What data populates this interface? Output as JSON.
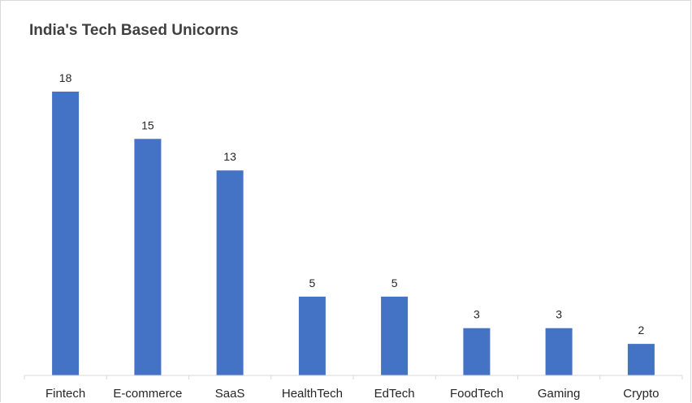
{
  "chart_data": {
    "type": "bar",
    "title": "India's Tech Based Unicorns",
    "xlabel": "",
    "ylabel": "",
    "categories": [
      "Fintech",
      "E-commerce",
      "SaaS",
      "HealthTech",
      "EdTech",
      "FoodTech",
      "Gaming",
      "Crypto"
    ],
    "values": [
      18,
      15,
      13,
      5,
      5,
      3,
      3,
      2
    ],
    "ylim": [
      0,
      18
    ],
    "grid": false,
    "legend": "none",
    "data_labels": true,
    "bar_color": "#4472C4"
  }
}
